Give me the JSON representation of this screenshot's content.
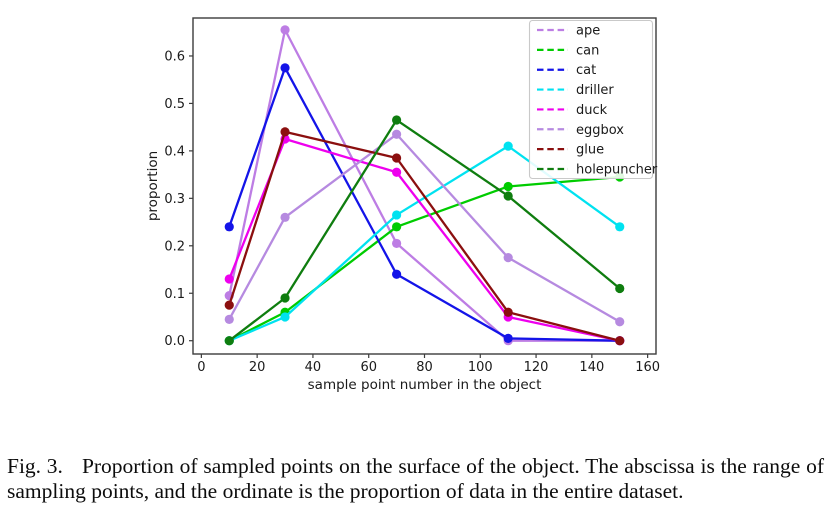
{
  "figure": {
    "caption_label": "Fig. 3.",
    "caption_text": "Proportion of sampled points on the surface of the object. The abscissa is the range of sampling points, and the ordinate is the proportion of data in the entire dataset."
  },
  "chart_data": {
    "type": "line",
    "title": "",
    "xlabel": "sample point number in the object",
    "ylabel": "proportion",
    "x": [
      10,
      30,
      70,
      110,
      150
    ],
    "series": [
      {
        "name": "ape",
        "color": "#bd7de4",
        "values": [
          0.095,
          0.655,
          0.205,
          0.0,
          0.0
        ]
      },
      {
        "name": "can",
        "color": "#00cc00",
        "values": [
          0.0,
          0.06,
          0.24,
          0.325,
          0.345
        ]
      },
      {
        "name": "cat",
        "color": "#1414e8",
        "values": [
          0.24,
          0.575,
          0.14,
          0.005,
          0.0
        ]
      },
      {
        "name": "driller",
        "color": "#00e2f0",
        "values": [
          0.0,
          0.05,
          0.265,
          0.41,
          0.24
        ]
      },
      {
        "name": "duck",
        "color": "#ee00ee",
        "values": [
          0.13,
          0.425,
          0.355,
          0.05,
          0.0
        ]
      },
      {
        "name": "eggbox",
        "color": "#b68ae0",
        "values": [
          0.045,
          0.26,
          0.435,
          0.175,
          0.04
        ]
      },
      {
        "name": "glue",
        "color": "#8b0f0f",
        "values": [
          0.075,
          0.44,
          0.385,
          0.06,
          0.0
        ]
      },
      {
        "name": "holepuncher",
        "color": "#0f7d0f",
        "values": [
          0.0,
          0.09,
          0.465,
          0.305,
          0.11
        ]
      }
    ],
    "xticks": [
      "0",
      "20",
      "40",
      "60",
      "80",
      "100",
      "120",
      "140",
      "160"
    ],
    "xtick_values": [
      0,
      20,
      40,
      60,
      80,
      100,
      120,
      140,
      160
    ],
    "yticks": [
      "0.0",
      "0.1",
      "0.2",
      "0.3",
      "0.4",
      "0.5",
      "0.6"
    ],
    "ytick_values": [
      0.0,
      0.1,
      0.2,
      0.3,
      0.4,
      0.5,
      0.6
    ],
    "xlim": [
      -3,
      163
    ],
    "ylim": [
      -0.028,
      0.68
    ],
    "grid": false,
    "legend_position": "upper right",
    "legend_line_style": "dashed",
    "marker": "circle",
    "axis_color": "#3c3c3c",
    "legend_border_color": "#c9c9c9"
  }
}
